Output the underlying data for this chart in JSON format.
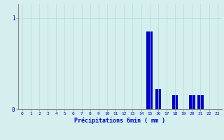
{
  "categories": [
    0,
    1,
    2,
    3,
    4,
    5,
    6,
    7,
    8,
    9,
    10,
    11,
    12,
    13,
    14,
    15,
    16,
    17,
    18,
    19,
    20,
    21,
    22,
    23
  ],
  "values": [
    0,
    0,
    0,
    0,
    0,
    0,
    0,
    0,
    0,
    0,
    0,
    0,
    0,
    0,
    0,
    0.85,
    0.22,
    0,
    0.15,
    0,
    0.15,
    0.15,
    0,
    0
  ],
  "bar_color": "#0000cc",
  "background_color": "#d4efed",
  "grid_color": "#b8dcd9",
  "xlabel": "Précipitations 6min ( mm )",
  "yticks": [
    0,
    1
  ],
  "ylim": [
    0,
    1.15
  ],
  "xlim": [
    -0.5,
    23.5
  ],
  "xlabel_color": "#0000cc",
  "tick_color": "#0000cc",
  "axis_color": "#888888",
  "bar_width": 0.7
}
